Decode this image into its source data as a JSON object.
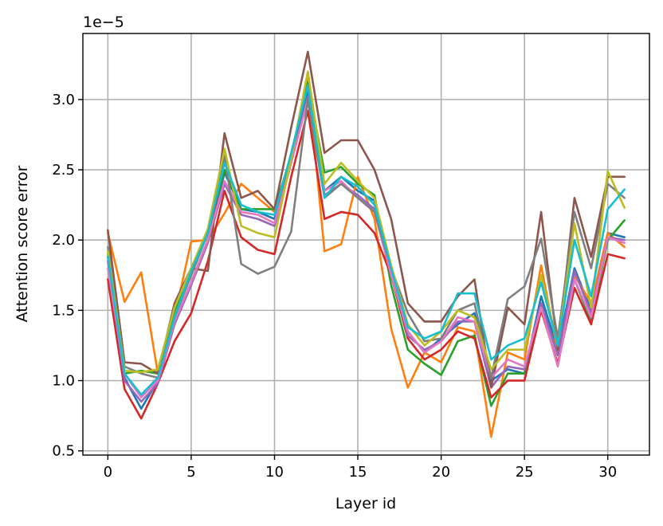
{
  "chart_data": {
    "type": "line",
    "xlabel": "Layer id",
    "ylabel": "Attention score error",
    "y_offset_label": "1e−5",
    "y_multiplier": 1e-05,
    "xlim": [
      -1.5,
      32.5
    ],
    "ylim": [
      0.47,
      3.47
    ],
    "x_ticks": [
      0,
      5,
      10,
      15,
      20,
      25,
      30
    ],
    "y_ticks": [
      0.5,
      1.0,
      1.5,
      2.0,
      2.5,
      3.0
    ],
    "y_tick_labels": [
      "0.5",
      "1.0",
      "1.5",
      "2.0",
      "2.5",
      "3.0"
    ],
    "grid": true,
    "legend": "none",
    "x": [
      0,
      1,
      2,
      3,
      4,
      5,
      6,
      7,
      8,
      9,
      10,
      11,
      12,
      13,
      14,
      15,
      16,
      17,
      18,
      19,
      20,
      21,
      22,
      23,
      24,
      25,
      26,
      27,
      28,
      29,
      30,
      31
    ],
    "series": [
      {
        "color": "#1f77b4",
        "values": [
          1.88,
          1.02,
          0.8,
          1.0,
          1.4,
          1.7,
          2.0,
          2.48,
          2.22,
          2.2,
          2.15,
          2.6,
          3.05,
          2.35,
          2.45,
          2.35,
          2.28,
          1.8,
          1.35,
          1.2,
          1.3,
          1.4,
          1.48,
          1.0,
          1.08,
          1.05,
          1.6,
          1.22,
          1.8,
          1.5,
          2.05,
          2.02
        ]
      },
      {
        "color": "#ff7f0e",
        "values": [
          2.05,
          1.56,
          1.77,
          1.05,
          1.45,
          1.99,
          2.0,
          2.19,
          2.4,
          2.3,
          2.2,
          2.6,
          3.15,
          1.92,
          1.97,
          2.45,
          2.15,
          1.37,
          0.95,
          1.2,
          1.13,
          1.38,
          1.35,
          0.6,
          1.2,
          1.15,
          1.82,
          1.2,
          1.75,
          1.55,
          2.05,
          1.95
        ]
      },
      {
        "color": "#2ca02c",
        "values": [
          1.9,
          1.05,
          1.07,
          1.05,
          1.5,
          1.75,
          2.05,
          2.5,
          2.22,
          2.22,
          2.22,
          2.6,
          3.12,
          2.48,
          2.52,
          2.4,
          2.32,
          1.68,
          1.22,
          1.12,
          1.04,
          1.28,
          1.32,
          0.82,
          1.05,
          1.05,
          1.55,
          1.18,
          1.72,
          1.42,
          2.0,
          2.14
        ]
      },
      {
        "color": "#d62728",
        "values": [
          1.72,
          0.94,
          0.73,
          0.98,
          1.28,
          1.48,
          1.85,
          2.35,
          2.02,
          1.93,
          1.9,
          2.45,
          2.92,
          2.15,
          2.2,
          2.18,
          2.05,
          1.75,
          1.3,
          1.15,
          1.22,
          1.35,
          1.3,
          0.88,
          1.0,
          1.0,
          1.5,
          1.12,
          1.66,
          1.4,
          1.9,
          1.87
        ]
      },
      {
        "color": "#9467bd",
        "values": [
          1.85,
          1.0,
          0.85,
          0.98,
          1.4,
          1.68,
          1.98,
          2.4,
          2.18,
          2.15,
          2.1,
          2.55,
          3.02,
          2.32,
          2.4,
          2.32,
          2.22,
          1.78,
          1.32,
          1.22,
          1.28,
          1.42,
          1.42,
          0.95,
          1.1,
          1.08,
          1.55,
          1.18,
          1.78,
          1.48,
          2.02,
          2.0
        ]
      },
      {
        "color": "#8c564b",
        "values": [
          2.07,
          1.13,
          1.12,
          1.05,
          1.55,
          1.8,
          1.78,
          2.76,
          2.3,
          2.35,
          2.22,
          2.8,
          3.34,
          2.62,
          2.71,
          2.71,
          2.5,
          2.15,
          1.55,
          1.42,
          1.42,
          1.6,
          1.72,
          0.95,
          1.52,
          1.4,
          2.2,
          1.22,
          2.3,
          1.88,
          2.45,
          2.45
        ]
      },
      {
        "color": "#e377c2",
        "values": [
          1.8,
          1.05,
          0.88,
          1.0,
          1.42,
          1.7,
          2.0,
          2.42,
          2.2,
          2.18,
          2.12,
          2.55,
          3.0,
          2.35,
          2.42,
          2.3,
          2.2,
          1.75,
          1.35,
          1.2,
          1.28,
          1.45,
          1.42,
          1.02,
          1.15,
          1.1,
          1.52,
          1.1,
          1.72,
          1.45,
          2.02,
          1.98
        ]
      },
      {
        "color": "#7f7f7f",
        "values": [
          1.95,
          1.1,
          1.05,
          1.02,
          1.45,
          1.75,
          2.05,
          2.6,
          1.83,
          1.76,
          1.81,
          2.06,
          3.0,
          2.3,
          2.4,
          2.3,
          2.2,
          1.8,
          1.48,
          1.28,
          1.3,
          1.5,
          1.55,
          1.02,
          1.58,
          1.67,
          2.01,
          1.3,
          2.2,
          1.8,
          2.4,
          2.3
        ]
      },
      {
        "color": "#bcbd22",
        "values": [
          1.92,
          1.07,
          1.06,
          1.08,
          1.52,
          1.8,
          2.08,
          2.65,
          2.1,
          2.05,
          2.02,
          2.58,
          3.2,
          2.4,
          2.55,
          2.42,
          2.3,
          1.82,
          1.4,
          1.25,
          1.35,
          1.5,
          1.45,
          1.08,
          1.22,
          1.22,
          1.75,
          1.25,
          2.12,
          1.52,
          2.49,
          2.23
        ]
      },
      {
        "color": "#17becf",
        "values": [
          1.88,
          1.05,
          0.9,
          1.02,
          1.45,
          1.78,
          2.05,
          2.55,
          2.25,
          2.2,
          2.18,
          2.62,
          3.1,
          2.3,
          2.45,
          2.38,
          2.25,
          1.8,
          1.38,
          1.3,
          1.35,
          1.62,
          1.62,
          1.15,
          1.25,
          1.3,
          1.7,
          1.25,
          2.0,
          1.6,
          2.22,
          2.36
        ]
      }
    ]
  }
}
